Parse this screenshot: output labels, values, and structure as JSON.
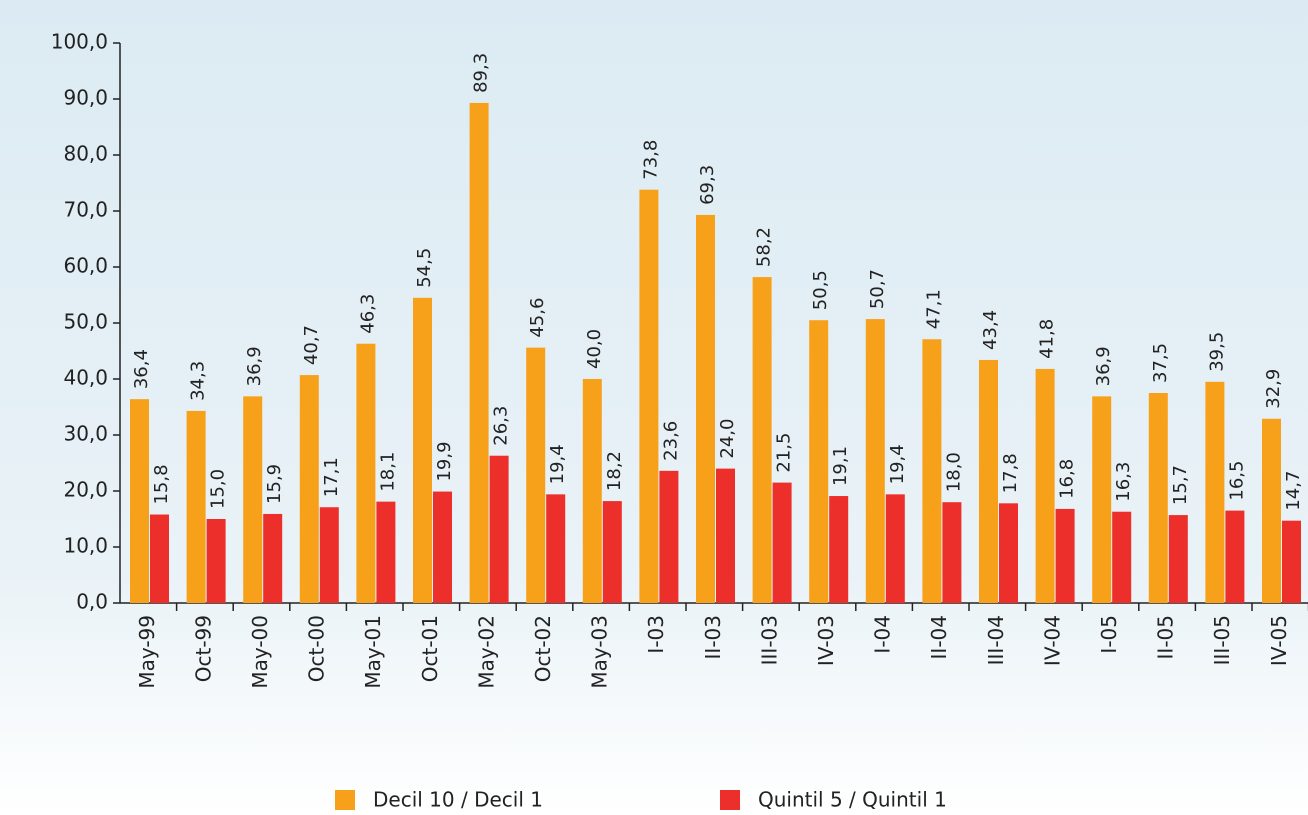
{
  "chart_data": {
    "type": "bar",
    "categories": [
      "May-99",
      "Oct-99",
      "May-00",
      "Oct-00",
      "May-01",
      "Oct-01",
      "May-02",
      "Oct-02",
      "May-03",
      "I-03",
      "II-03",
      "III-03",
      "IV-03",
      "I-04",
      "II-04",
      "III-04",
      "IV-04",
      "I-05",
      "II-05",
      "III-05",
      "IV-05"
    ],
    "series": [
      {
        "name": "Decil 10 / Decil 1",
        "color": "#f7a11a",
        "values": [
          36.4,
          34.3,
          36.9,
          40.7,
          46.3,
          54.5,
          89.3,
          45.6,
          40.0,
          73.8,
          69.3,
          58.2,
          50.5,
          50.7,
          47.1,
          43.4,
          41.8,
          36.9,
          37.5,
          39.5,
          32.9
        ],
        "value_labels": [
          "36,4",
          "34,3",
          "36,9",
          "40,7",
          "46,3",
          "54,5",
          "89,3",
          "45,6",
          "40,0",
          "73,8",
          "69,3",
          "58,2",
          "50,5",
          "50,7",
          "47,1",
          "43,4",
          "41,8",
          "36,9",
          "37,5",
          "39,5",
          "32,9"
        ]
      },
      {
        "name": "Quintil 5 / Quintil 1",
        "color": "#ec2f2a",
        "values": [
          15.8,
          15.0,
          15.9,
          17.1,
          18.1,
          19.9,
          26.3,
          19.4,
          18.2,
          23.6,
          24.0,
          21.5,
          19.1,
          19.4,
          18.0,
          17.8,
          16.8,
          16.3,
          15.7,
          16.5,
          14.7
        ],
        "value_labels": [
          "15,8",
          "15,0",
          "15,9",
          "17,1",
          "18,1",
          "19,9",
          "26,3",
          "19,4",
          "18,2",
          "23,6",
          "24,0",
          "21,5",
          "19,1",
          "19,4",
          "18,0",
          "17,8",
          "16,8",
          "16,3",
          "15,7",
          "16,5",
          "14,7"
        ]
      }
    ],
    "ylim": [
      0,
      100
    ],
    "yticks": [
      {
        "value": 0,
        "label": "0,0"
      },
      {
        "value": 10,
        "label": "10,0"
      },
      {
        "value": 20,
        "label": "20,0"
      },
      {
        "value": 30,
        "label": "30,0"
      },
      {
        "value": 40,
        "label": "40,0"
      },
      {
        "value": 50,
        "label": "50,0"
      },
      {
        "value": 60,
        "label": "60,0"
      },
      {
        "value": 70,
        "label": "70,0"
      },
      {
        "value": 80,
        "label": "80,0"
      },
      {
        "value": 90,
        "label": "90,0"
      },
      {
        "value": 100,
        "label": "100,0"
      }
    ],
    "grid": false
  }
}
